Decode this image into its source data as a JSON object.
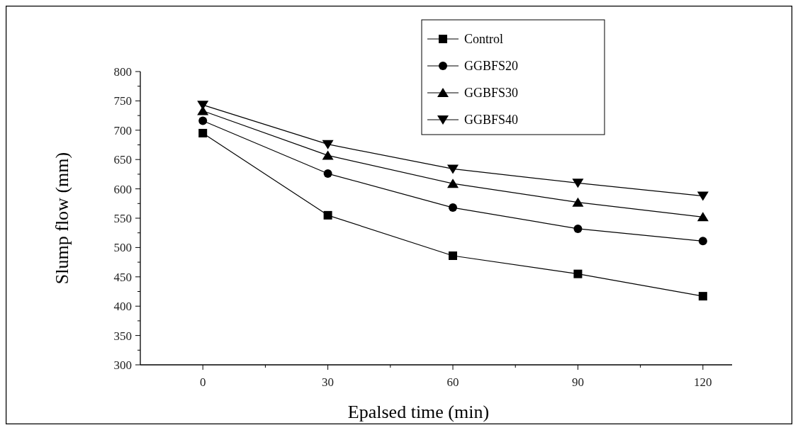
{
  "chart_data": {
    "type": "line",
    "xlabel": "Epalsed time (min)",
    "ylabel": "Slump flow (mm)",
    "x": [
      0,
      30,
      60,
      90,
      120
    ],
    "xlim": [
      -15,
      127
    ],
    "xticks": [
      0,
      30,
      60,
      90,
      120
    ],
    "ylim": [
      300,
      800
    ],
    "yticks": [
      300,
      350,
      400,
      450,
      500,
      550,
      600,
      650,
      700,
      750,
      800
    ],
    "grid": false,
    "legend": "top right",
    "line_style": "solid",
    "series": [
      {
        "name": "Control",
        "color": "#000000",
        "marker": "square",
        "values": [
          695,
          555,
          486,
          455,
          417
        ]
      },
      {
        "name": "GGBFS20",
        "color": "#000000",
        "marker": "circle",
        "values": [
          716,
          626,
          568,
          532,
          511
        ]
      },
      {
        "name": "GGBFS30",
        "color": "#000000",
        "marker": "triangle",
        "values": [
          733,
          657,
          609,
          577,
          552
        ]
      },
      {
        "name": "GGBFS40",
        "color": "#000000",
        "marker": "triangle-down",
        "values": [
          743,
          676,
          634,
          610,
          588
        ]
      }
    ]
  }
}
